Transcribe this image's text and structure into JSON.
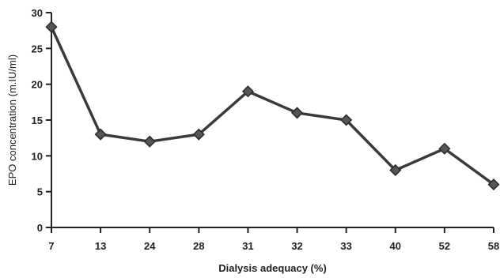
{
  "chart_data": {
    "type": "line",
    "title": "",
    "xlabel": "Dialysis adequacy (%)",
    "ylabel": "EPO concentration (m.IU/ml)",
    "categories": [
      "7",
      "13",
      "24",
      "28",
      "31",
      "32",
      "33",
      "40",
      "52",
      "58"
    ],
    "series": [
      {
        "values": [
          28,
          13,
          12,
          13,
          19,
          16,
          15,
          8,
          11,
          6
        ]
      }
    ],
    "ylim": [
      0,
      30
    ],
    "yticks": [
      0,
      5,
      10,
      15,
      20,
      25,
      30
    ],
    "grid": false,
    "legend": "none",
    "marker": "diamond",
    "line_color": "#3a3a3a",
    "marker_color": "#555555"
  }
}
